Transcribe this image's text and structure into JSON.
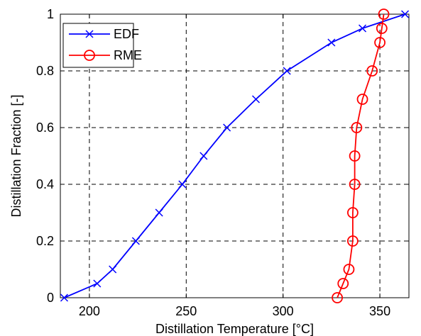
{
  "chart_data": {
    "type": "line",
    "xlabel": "Distillation Temperature [°C]",
    "ylabel": "Distillation Fraction [-]",
    "xlim": [
      185,
      365
    ],
    "ylim": [
      0,
      1
    ],
    "xticks": [
      200,
      250,
      300,
      350
    ],
    "yticks": [
      0,
      0.2,
      0.4,
      0.6,
      0.8,
      1
    ],
    "ytick_labels": [
      "0",
      "0.2",
      "0.4",
      "0.6",
      "0.8",
      "1"
    ],
    "grid": true,
    "legend_position": "top-left",
    "series": [
      {
        "name": "EDF",
        "color": "#0000ff",
        "marker": "x",
        "x": [
          187,
          204,
          212,
          224,
          236,
          248,
          259,
          271,
          286,
          302,
          325,
          341,
          363
        ],
        "y": [
          0,
          0.05,
          0.1,
          0.2,
          0.3,
          0.4,
          0.5,
          0.6,
          0.7,
          0.8,
          0.9,
          0.95,
          1
        ]
      },
      {
        "name": "RME",
        "color": "#ff0000",
        "marker": "o",
        "x": [
          328,
          331,
          334,
          336,
          336,
          337,
          337,
          338,
          341,
          346,
          350,
          351,
          352
        ],
        "y": [
          0,
          0.05,
          0.1,
          0.2,
          0.3,
          0.4,
          0.5,
          0.6,
          0.7,
          0.8,
          0.9,
          0.95,
          1
        ]
      }
    ]
  }
}
